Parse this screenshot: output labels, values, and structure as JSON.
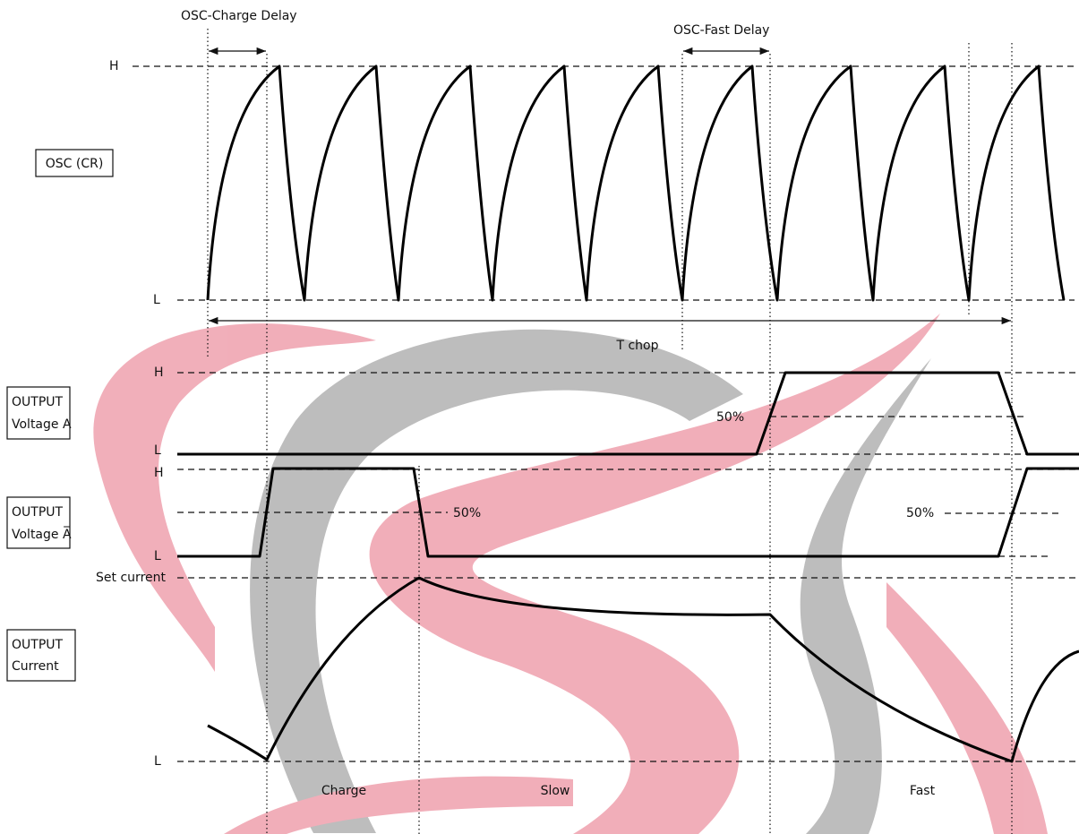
{
  "annotations": {
    "osc_charge_delay": "OSC-Charge Delay",
    "osc_fast_delay": "OSC-Fast Delay",
    "t_chop": "T chop"
  },
  "signals": [
    {
      "label": [
        "OSC (CR)"
      ],
      "levels": [
        "H",
        "L"
      ]
    },
    {
      "label": [
        "OUTPUT",
        "Voltage A"
      ],
      "levels": [
        "H",
        "L"
      ],
      "thresholds": [
        "50%"
      ]
    },
    {
      "label": [
        "OUTPUT",
        "Voltage A̅"
      ],
      "levels": [
        "H",
        "L"
      ],
      "thresholds": [
        "50%",
        "50%"
      ]
    },
    {
      "label": [
        "OUTPUT",
        "Current"
      ],
      "levels": [
        "Set current",
        "L"
      ]
    }
  ],
  "phases": [
    "Charge",
    "Slow",
    "Fast"
  ]
}
